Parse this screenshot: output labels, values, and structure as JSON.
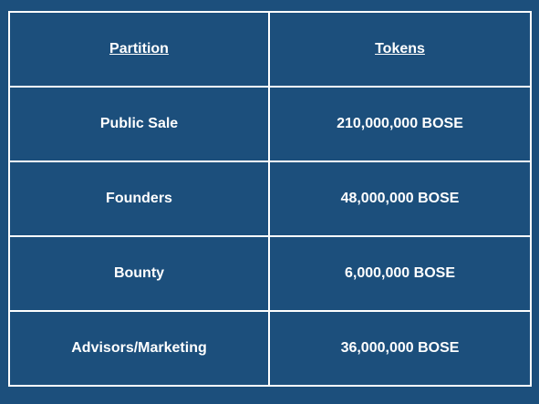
{
  "table": {
    "headers": [
      "Partition",
      "Tokens"
    ],
    "rows": [
      [
        "Public Sale",
        "210,000,000 BOSE"
      ],
      [
        "Founders",
        "48,000,000 BOSE"
      ],
      [
        "Bounty",
        "6,000,000 BOSE"
      ],
      [
        "Advisors/Marketing",
        "36,000,000 BOSE"
      ]
    ]
  },
  "colors": {
    "background": "#1c4f7c",
    "text": "#ffffff",
    "border": "#ffffff"
  }
}
